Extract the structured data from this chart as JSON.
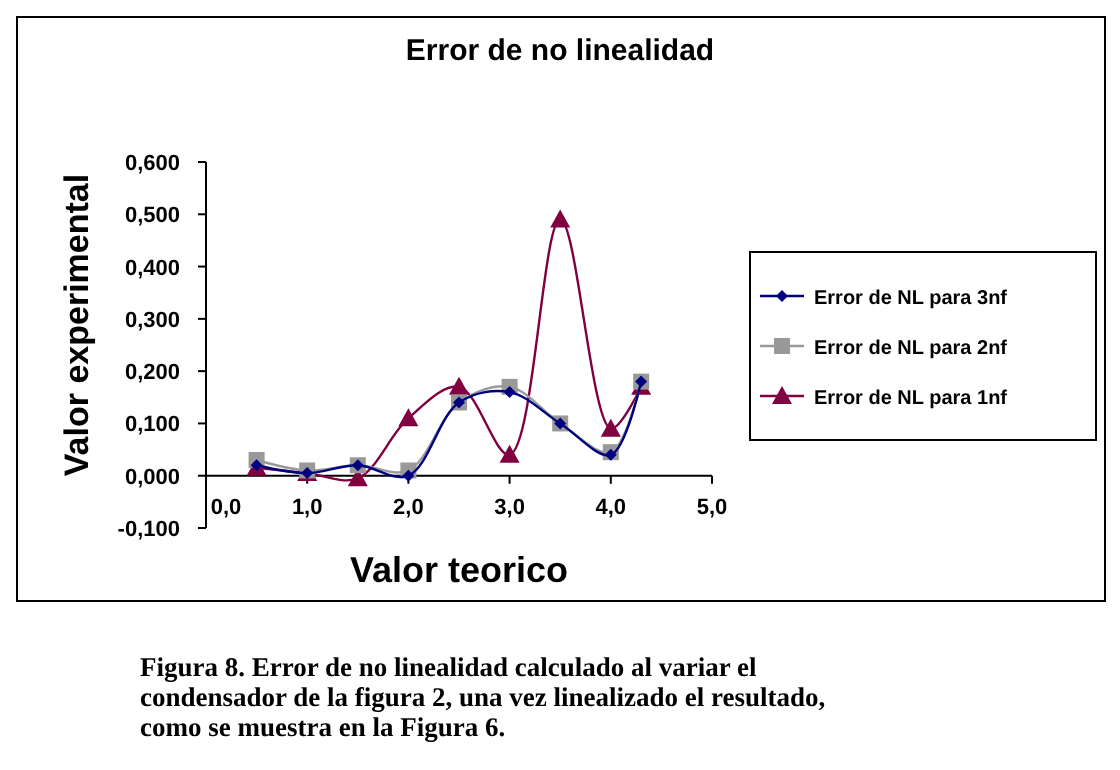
{
  "chart_data": {
    "type": "line",
    "title": "Error de no linealidad",
    "xlabel": "Valor teorico",
    "ylabel": "Valor experimental",
    "x": [
      0.5,
      1.0,
      1.5,
      2.0,
      2.5,
      3.0,
      3.5,
      4.0,
      4.3
    ],
    "series": [
      {
        "name": "Error de NL para 3nf",
        "color": "#000080",
        "marker": "diamond",
        "values": [
          0.02,
          0.005,
          0.02,
          0.0,
          0.14,
          0.16,
          0.1,
          0.04,
          0.18
        ]
      },
      {
        "name": "Error de NL para 2nf",
        "color": "#999999",
        "marker": "square",
        "values": [
          0.03,
          0.01,
          0.02,
          0.01,
          0.14,
          0.17,
          0.1,
          0.045,
          0.18
        ]
      },
      {
        "name": "Error de NL para 1nf",
        "color": "#800040",
        "marker": "triangle",
        "values": [
          0.015,
          0.005,
          -0.005,
          0.11,
          0.17,
          0.04,
          0.49,
          0.09,
          0.17
        ]
      }
    ],
    "xlim": [
      0,
      5
    ],
    "xticks": [
      {
        "value": 0,
        "label": "0,0"
      },
      {
        "value": 1,
        "label": "1,0"
      },
      {
        "value": 2,
        "label": "2,0"
      },
      {
        "value": 3,
        "label": "3,0"
      },
      {
        "value": 4,
        "label": "4,0"
      },
      {
        "value": 5,
        "label": "5,0"
      }
    ],
    "ylim": [
      -0.1,
      0.6
    ],
    "yticks": [
      {
        "value": -0.1,
        "label": "-0,100"
      },
      {
        "value": 0,
        "label": "0,000"
      },
      {
        "value": 0.1,
        "label": "0,100"
      },
      {
        "value": 0.2,
        "label": "0,200"
      },
      {
        "value": 0.3,
        "label": "0,300"
      },
      {
        "value": 0.4,
        "label": "0,400"
      },
      {
        "value": 0.5,
        "label": "0,500"
      },
      {
        "value": 0.6,
        "label": "0,600"
      }
    ],
    "grid": false,
    "legend": "right",
    "annotations": [
      "Figura 8. Error de no linealidad calculado al variar el condensador de la figura 2, una vez linealizado el resultado, como se muestra en la Figura 6."
    ]
  }
}
